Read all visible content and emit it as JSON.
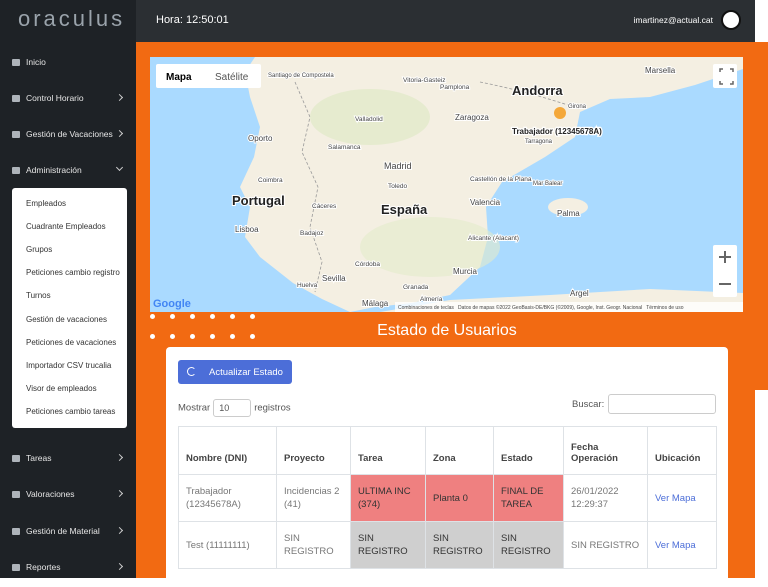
{
  "header": {
    "logo": "oraculus",
    "clock": "Hora: 12:50:01",
    "user": "imartinez@actual.cat"
  },
  "sidebar": {
    "menu_top": [
      "Inicio",
      "Control Horario",
      "Gestión de Vacaciones",
      "Administración"
    ],
    "submenu": [
      "Empleados",
      "Cuadrante Empleados",
      "Grupos",
      "Peticiones cambio registro",
      "Turnos",
      "Gestión de vacaciones",
      "Peticiones de vacaciones",
      "Importador CSV trucalia",
      "Visor de empleados",
      "Peticiones cambio tareas"
    ],
    "menu_bottom": [
      "Tareas",
      "Valoraciones",
      "Gestión de Material",
      "Reportes"
    ]
  },
  "map": {
    "type_buttons": [
      "Mapa",
      "Satélite"
    ],
    "labels": [
      "Marsella",
      "Andorra",
      "Santiago de Compostela",
      "Vitoria-Gasteiz",
      "Pamplona",
      "Zaragoza",
      "Girona",
      "Tarragona",
      "Valladolid",
      "Oporto",
      "Salamanca",
      "Coimbra",
      "Madrid",
      "Toledo",
      "Castellón de la Plana",
      "Mar Balear",
      "Portugal",
      "España",
      "Valencia",
      "Cáceres",
      "Palma",
      "Lisboa",
      "Badajoz",
      "Alicante (Alacant)",
      "Córdoba",
      "Murcia",
      "Sevilla",
      "Huelva",
      "Granada",
      "Málaga",
      "Almería",
      "Argel"
    ],
    "marker_label": "Trabajador (12345678A)",
    "logo": "Google",
    "attribution": "Combinaciones de teclas   Datos de mapas ©2022 GeoBasis-DE/BKG (©2009), Google, Inst. Geogr. Nacional   Términos de uso"
  },
  "section_title": "Estado de Usuarios",
  "button": "Actualizar Estado",
  "show_prefix": "Mostrar",
  "page_size": "10",
  "show_suffix": "registros",
  "search_label": "Buscar:",
  "table": {
    "headers": [
      "Nombre (DNI)",
      "Proyecto",
      "Tarea",
      "Zona",
      "Estado",
      "Fecha Operación",
      "Ubicación"
    ],
    "rows": [
      [
        "Trabajador (12345678A)",
        "Incidencias 2 (41)",
        "ULTIMA INC (374)",
        "Planta 0",
        "FINAL DE TAREA",
        "26/01/2022 12:29:37",
        "Ver Mapa"
      ],
      [
        "Test (11111111)",
        "SIN REGISTRO",
        "SIN REGISTRO",
        "SIN REGISTRO",
        "SIN REGISTRO",
        "SIN REGISTRO",
        "Ver Mapa"
      ]
    ]
  }
}
